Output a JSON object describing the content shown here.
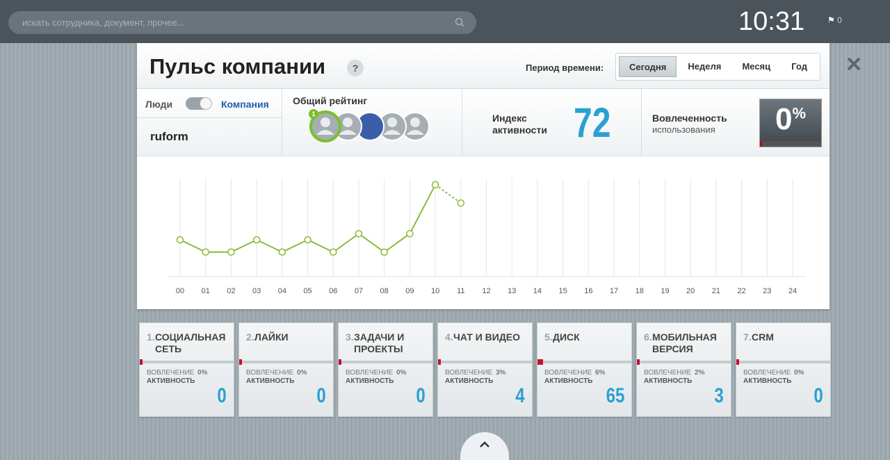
{
  "topbar": {
    "search_placeholder": "искать сотрудника, документ, прочее...",
    "time": "10:31",
    "notifications": "0"
  },
  "header": {
    "title": "Пульс компании",
    "help": "?",
    "period_label": "Период времени:",
    "periods": [
      "Сегодня",
      "Неделя",
      "Месяц",
      "Год"
    ],
    "active_period": 0
  },
  "summary": {
    "toggle_left": "Люди",
    "toggle_right": "Компания",
    "company": "ruform",
    "rating_label": "Общий рейтинг",
    "rating_badge": "1",
    "index_label": "Индекс активности",
    "index_value": "72",
    "engagement_title": "Вовлеченность",
    "engagement_subtitle": "использования",
    "engagement_value": "0",
    "engagement_unit": "%"
  },
  "chart": {
    "type": "line",
    "categories": [
      "00",
      "01",
      "02",
      "03",
      "04",
      "05",
      "06",
      "07",
      "08",
      "09",
      "10",
      "11",
      "12",
      "13",
      "14",
      "15",
      "16",
      "17",
      "18",
      "19",
      "20",
      "21",
      "22",
      "23",
      "24"
    ],
    "series": [
      {
        "color": "#8cb83a",
        "dashed": false,
        "values": [
          3,
          2,
          2,
          3,
          2,
          3,
          2,
          3.5,
          2,
          3.5,
          7.5,
          null,
          null,
          null,
          null,
          null,
          null,
          null,
          null,
          null,
          null,
          null,
          null,
          null,
          null
        ]
      },
      {
        "color": "#8cb83a",
        "dashed": true,
        "values": [
          null,
          null,
          null,
          null,
          null,
          null,
          null,
          null,
          null,
          null,
          7.5,
          6,
          null,
          null,
          null,
          null,
          null,
          null,
          null,
          null,
          null,
          null,
          null,
          null,
          null
        ]
      }
    ],
    "ylim": [
      0,
      8
    ],
    "grid": true
  },
  "modules": [
    {
      "number": "1.",
      "title": "СОЦИАЛЬНАЯ СЕТЬ",
      "engagement_label": "ВОВЛЕЧЕНИЕ",
      "engagement": "0%",
      "activity_label": "АКТИВНОСТЬ",
      "activity": "0"
    },
    {
      "number": "2.",
      "title": "ЛАЙКИ",
      "engagement_label": "ВОВЛЕЧЕНИЕ",
      "engagement": "0%",
      "activity_label": "АКТИВНОСТЬ",
      "activity": "0"
    },
    {
      "number": "3.",
      "title": "ЗАДАЧИ И ПРОЕКТЫ",
      "engagement_label": "ВОВЛЕЧЕНИЕ",
      "engagement": "0%",
      "activity_label": "АКТИВНОСТЬ",
      "activity": "0"
    },
    {
      "number": "4.",
      "title": "ЧАТ И ВИДЕО",
      "engagement_label": "ВОВЛЕЧЕНИЕ",
      "engagement": "3%",
      "activity_label": "АКТИВНОСТЬ",
      "activity": "4"
    },
    {
      "number": "5.",
      "title": "ДИСК",
      "engagement_label": "ВОВЛЕЧЕНИЕ",
      "engagement": "6%",
      "activity_label": "АКТИВНОСТЬ",
      "activity": "65"
    },
    {
      "number": "6.",
      "title": "МОБИЛЬНАЯ ВЕРСИЯ",
      "engagement_label": "ВОВЛЕЧЕНИЕ",
      "engagement": "2%",
      "activity_label": "АКТИВНОСТЬ",
      "activity": "3"
    },
    {
      "number": "7.",
      "title": "CRM",
      "engagement_label": "ВОВЛЕЧЕНИЕ",
      "engagement": "0%",
      "activity_label": "АКТИВНОСТЬ",
      "activity": "0"
    }
  ]
}
